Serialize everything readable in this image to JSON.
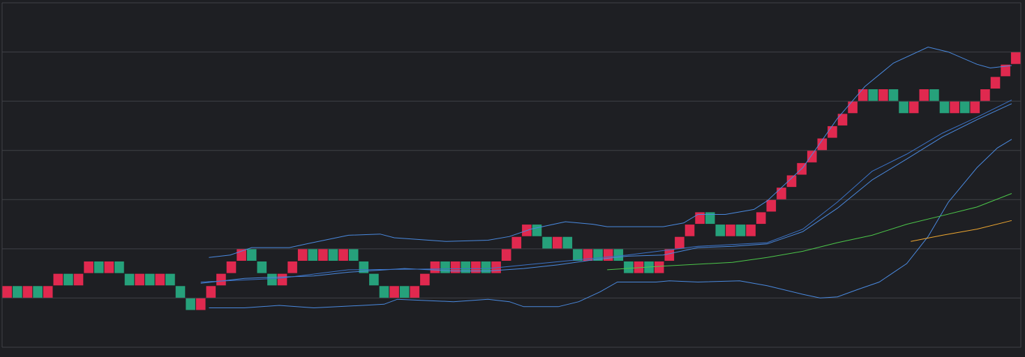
{
  "chart_data": {
    "type": "renko",
    "brick_size": 1,
    "xlim": [
      -0.5,
      99.5
    ],
    "ylim": [
      0,
      28
    ],
    "yticks": [
      0,
      4,
      8,
      12,
      16,
      20,
      24,
      28
    ],
    "grid": true,
    "values": [
      4,
      4,
      4,
      4,
      4,
      5,
      5,
      5,
      6,
      6,
      6,
      6,
      5,
      5,
      5,
      5,
      5,
      4,
      3,
      3,
      4,
      5,
      6,
      7,
      7,
      6,
      5,
      5,
      6,
      7,
      7,
      7,
      7,
      7,
      7,
      6,
      5,
      4,
      4,
      4,
      4,
      5,
      6,
      6,
      6,
      6,
      6,
      6,
      6,
      7,
      8,
      9,
      9,
      8,
      8,
      8,
      7,
      7,
      7,
      7,
      7,
      6,
      6,
      6,
      6,
      7,
      8,
      9,
      10,
      10,
      9,
      9,
      9,
      9,
      10,
      11,
      12,
      13,
      14,
      15,
      16,
      17,
      18,
      19,
      20,
      20,
      20,
      20,
      19,
      19,
      20,
      20,
      19,
      19,
      19,
      19,
      20,
      21,
      22,
      23
    ],
    "colors": [
      "#e0294f",
      "#26a17b",
      "#e0294f",
      "#26a17b",
      "#e0294f",
      "#e0294f",
      "#26a17b",
      "#e0294f",
      "#e0294f",
      "#26a17b",
      "#e0294f",
      "#26a17b",
      "#26a17b",
      "#e0294f",
      "#26a17b",
      "#e0294f",
      "#26a17b",
      "#26a17b",
      "#26a17b",
      "#e0294f",
      "#e0294f",
      "#e0294f",
      "#e0294f",
      "#e0294f",
      "#26a17b",
      "#26a17b",
      "#26a17b",
      "#e0294f",
      "#e0294f",
      "#e0294f",
      "#26a17b",
      "#e0294f",
      "#26a17b",
      "#e0294f",
      "#26a17b",
      "#26a17b",
      "#26a17b",
      "#26a17b",
      "#e0294f",
      "#26a17b",
      "#e0294f",
      "#e0294f",
      "#e0294f",
      "#26a17b",
      "#e0294f",
      "#26a17b",
      "#e0294f",
      "#26a17b",
      "#e0294f",
      "#e0294f",
      "#e0294f",
      "#e0294f",
      "#26a17b",
      "#26a17b",
      "#e0294f",
      "#26a17b",
      "#26a17b",
      "#e0294f",
      "#26a17b",
      "#e0294f",
      "#26a17b",
      "#26a17b",
      "#e0294f",
      "#26a17b",
      "#e0294f",
      "#e0294f",
      "#e0294f",
      "#e0294f",
      "#e0294f",
      "#26a17b",
      "#26a17b",
      "#e0294f",
      "#26a17b",
      "#e0294f",
      "#e0294f",
      "#e0294f",
      "#e0294f",
      "#e0294f",
      "#e0294f",
      "#e0294f",
      "#e0294f",
      "#e0294f",
      "#e0294f",
      "#e0294f",
      "#e0294f",
      "#26a17b",
      "#e0294f",
      "#26a17b",
      "#26a17b",
      "#e0294f",
      "#e0294f",
      "#26a17b",
      "#26a17b",
      "#e0294f",
      "#26a17b",
      "#e0294f",
      "#e0294f",
      "#e0294f",
      "#e0294f",
      "#e0294f"
    ],
    "series": [
      {
        "color": "#4a8ae0",
        "x": [
          19.8,
          21.9,
          24.0,
          27.7,
          29.4,
          33.5,
          36.6,
          38.0,
          43.1,
          47.2,
          49.3,
          51.4,
          54.8,
          57.5,
          58.9,
          64.4,
          66.4,
          67.8,
          70.5,
          73.3,
          74.6,
          78.1,
          81.5,
          84.2,
          87.0,
          90.4,
          92.4,
          95.2,
          96.5,
          98.6
        ],
        "values": [
          7.3,
          7.5,
          8.1,
          8.1,
          8.4,
          9.1,
          9.2,
          8.9,
          8.6,
          8.7,
          9.0,
          9.6,
          10.2,
          10.0,
          9.8,
          9.8,
          10.1,
          10.8,
          10.8,
          11.2,
          11.9,
          14.6,
          18.6,
          21.2,
          23.1,
          24.4,
          24.0,
          23.0,
          22.7,
          22.9
        ]
      },
      {
        "color": "#4a8ae0",
        "x": [
          19.8,
          23.3,
          26.7,
          30.1,
          34.9,
          37.0,
          38.3,
          43.8,
          47.2,
          49.3,
          50.7,
          54.1,
          56.1,
          58.2,
          59.9,
          63.7,
          65.0,
          67.8,
          71.9,
          74.6,
          78.1,
          79.8,
          81.5,
          83.5,
          85.6,
          88.3,
          90.4,
          92.4,
          95.2,
          97.2,
          98.6
        ],
        "values": [
          3.2,
          3.2,
          3.4,
          3.2,
          3.4,
          3.5,
          3.9,
          3.7,
          3.9,
          3.7,
          3.3,
          3.3,
          3.7,
          4.5,
          5.3,
          5.3,
          5.4,
          5.3,
          5.4,
          5.0,
          4.3,
          4.0,
          4.1,
          4.7,
          5.3,
          6.8,
          9.0,
          11.8,
          14.6,
          16.2,
          16.9
        ]
      },
      {
        "color": "#4a8ae0",
        "x": [
          19.0,
          23.3,
          26.7,
          30.1,
          33.5,
          39.0,
          43.8,
          47.2,
          50.7,
          54.1,
          57.5,
          60.9,
          64.4,
          67.8,
          71.2,
          74.6,
          78.1,
          81.5,
          84.9,
          88.3,
          91.8,
          95.2,
          98.6
        ],
        "values": [
          5.2,
          5.6,
          5.7,
          5.8,
          6.1,
          6.4,
          6.2,
          6.2,
          6.4,
          6.7,
          7.1,
          7.4,
          7.5,
          8.1,
          8.2,
          8.4,
          9.4,
          11.3,
          13.6,
          15.3,
          17.1,
          18.5,
          19.8
        ]
      },
      {
        "color": "#3b73c8",
        "x": [
          19.0,
          26.7,
          33.5,
          47.2,
          60.9,
          67.8,
          74.6,
          78.1,
          81.5,
          84.9,
          88.3,
          91.8,
          95.2,
          98.6
        ],
        "values": [
          5.3,
          5.6,
          6.3,
          6.4,
          7.5,
          8.2,
          8.5,
          9.6,
          11.8,
          14.3,
          15.7,
          17.4,
          18.7,
          20.1
        ]
      },
      {
        "color": "#4cc84a",
        "x": [
          58.9,
          64.4,
          71.2,
          74.6,
          78.1,
          81.5,
          84.9,
          88.3,
          91.8,
          95.2,
          98.6
        ],
        "values": [
          6.3,
          6.6,
          6.9,
          7.3,
          7.8,
          8.5,
          9.1,
          10.0,
          10.7,
          11.4,
          12.5
        ]
      },
      {
        "color": "#f0a830",
        "x": [
          88.7,
          91.8,
          95.2,
          98.6
        ],
        "values": [
          8.6,
          9.1,
          9.6,
          10.3
        ]
      }
    ]
  }
}
